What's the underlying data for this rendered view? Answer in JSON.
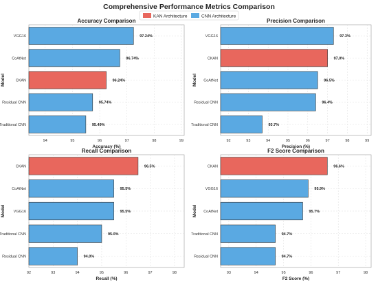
{
  "title": "Comprehensive Performance Metrics Comparison",
  "legend": {
    "placement": "top-center",
    "items": [
      {
        "name": "KAN Architecture",
        "color": "#e8675d"
      },
      {
        "name": "CNN Architecture",
        "color": "#5aa9e2"
      }
    ]
  },
  "colors": {
    "kan": "#e8675d",
    "cnn": "#5aa9e2",
    "grid": "#dddddd",
    "frame": "#999999"
  },
  "chart_data": [
    {
      "type": "bar",
      "orientation": "horizontal",
      "title": "Accuracy Comparison",
      "xlabel": "Accuracy (%)",
      "ylabel": "Model",
      "xlim": [
        93.4,
        99.1
      ],
      "xticks": [
        "94",
        "95",
        "96",
        "97",
        "98",
        "99"
      ],
      "grid": true,
      "categories": [
        "VGG16",
        "CoAtNet",
        "CKAN",
        "Residual CNN",
        "Traditional CNN"
      ],
      "values": [
        97.24,
        96.74,
        96.24,
        95.74,
        95.49
      ],
      "labels": [
        "97.24%",
        "96.74%",
        "96.24%",
        "95.74%",
        "95.49%"
      ],
      "series_type": [
        "CNN",
        "CNN",
        "KAN",
        "CNN",
        "CNN"
      ]
    },
    {
      "type": "bar",
      "orientation": "horizontal",
      "title": "Precision Comparison",
      "xlabel": "Precision (%)",
      "ylabel": "Model",
      "xlim": [
        91.6,
        99.2
      ],
      "xticks": [
        "92",
        "93",
        "94",
        "95",
        "96",
        "97",
        "98",
        "99"
      ],
      "grid": true,
      "categories": [
        "VGG16",
        "CKAN",
        "CoAtNet",
        "Residual CNN",
        "Traditional CNN"
      ],
      "values": [
        97.3,
        97.0,
        96.5,
        96.4,
        93.7
      ],
      "labels": [
        "97.3%",
        "97.0%",
        "96.5%",
        "96.4%",
        "93.7%"
      ],
      "series_type": [
        "CNN",
        "KAN",
        "CNN",
        "CNN",
        "CNN"
      ]
    },
    {
      "type": "bar",
      "orientation": "horizontal",
      "title": "Recall Comparison",
      "xlabel": "Recall (%)",
      "ylabel": "Model",
      "xlim": [
        92.0,
        98.4
      ],
      "xticks": [
        "92",
        "93",
        "94",
        "95",
        "96",
        "97",
        "98"
      ],
      "grid": true,
      "categories": [
        "CKAN",
        "CoAtNet",
        "VGG16",
        "Traditional CNN",
        "Residual CNN"
      ],
      "values": [
        96.5,
        95.5,
        95.5,
        95.0,
        94.0
      ],
      "labels": [
        "96.5%",
        "95.5%",
        "95.5%",
        "95.0%",
        "94.0%"
      ],
      "series_type": [
        "KAN",
        "CNN",
        "CNN",
        "CNN",
        "CNN"
      ]
    },
    {
      "type": "bar",
      "orientation": "horizontal",
      "title": "F2 Score Comparison",
      "xlabel": "F2 Score (%)",
      "ylabel": "Model",
      "xlim": [
        92.7,
        98.2
      ],
      "xticks": [
        "93",
        "94",
        "95",
        "96",
        "97",
        "98"
      ],
      "grid": true,
      "categories": [
        "CKAN",
        "VGG16",
        "CoAtNet",
        "Traditional CNN",
        "Residual CNN"
      ],
      "values": [
        96.6,
        95.9,
        95.7,
        94.7,
        94.7
      ],
      "labels": [
        "96.6%",
        "95.9%",
        "95.7%",
        "94.7%",
        "94.7%"
      ],
      "series_type": [
        "KAN",
        "CNN",
        "CNN",
        "CNN",
        "CNN"
      ]
    }
  ]
}
